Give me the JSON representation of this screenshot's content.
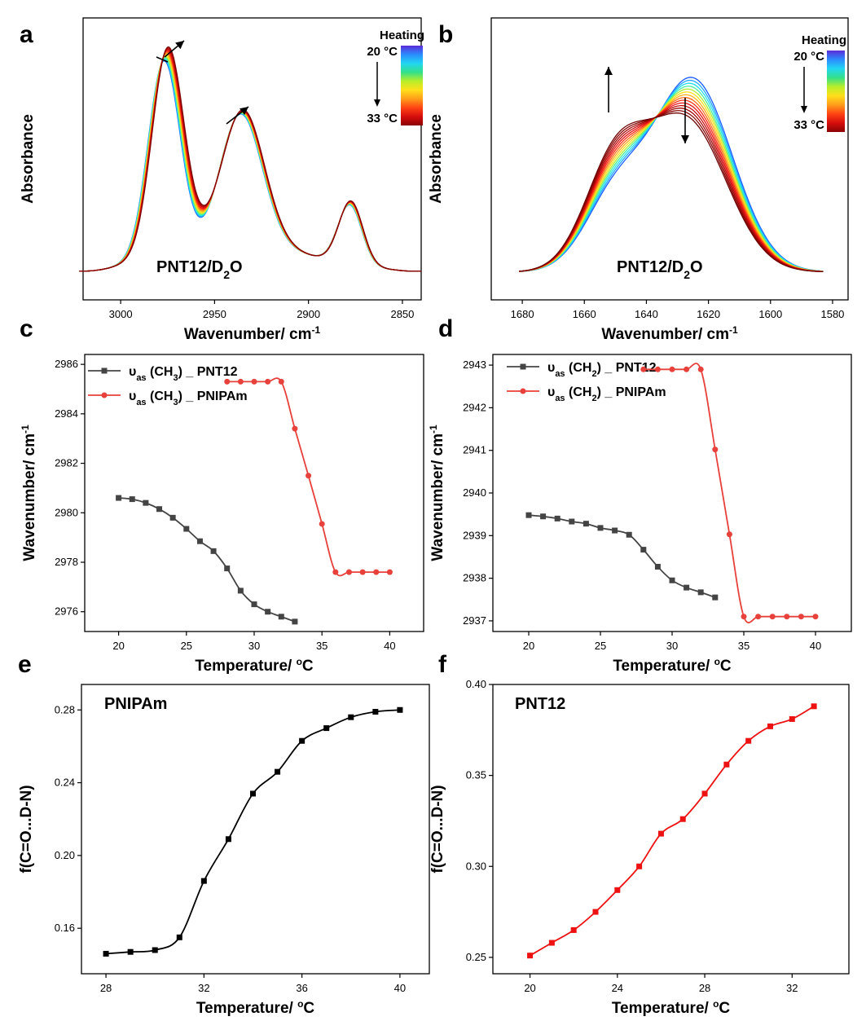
{
  "chart_data": [
    {
      "panel": "a",
      "type": "line",
      "xlabel": "Wavenumber/ cm",
      "xlabel_sup": "-1",
      "ylabel": "Absorbance",
      "xlim": [
        3020,
        2840
      ],
      "xticks": [
        3000,
        2950,
        2900,
        2850
      ],
      "annotation": "PNT12/D",
      "annotation_sub": "2",
      "annotation_tail": "O",
      "legend": {
        "title": "Heating",
        "start": "20 °C",
        "end": "33 °C"
      },
      "series_count": 14,
      "peaks": [
        {
          "x": 2977,
          "y_first": 0.92,
          "y_last": 0.98,
          "width": 12
        },
        {
          "x": 2936,
          "y_first": 0.62,
          "y_last": 0.64,
          "width": 16
        },
        {
          "x": 2878,
          "y_first": 0.28,
          "y_last": 0.3,
          "width": 9
        }
      ],
      "colors": [
        "#1a66ff",
        "#1fb8ff",
        "#22e6e6",
        "#4df099",
        "#99f04d",
        "#e6f026",
        "#ffd11a",
        "#ffa31a",
        "#ff6e1a",
        "#ff3314",
        "#ee1111",
        "#cc0a0a",
        "#a60606",
        "#800404"
      ]
    },
    {
      "panel": "b",
      "type": "line",
      "xlabel": "Wavenumber/ cm",
      "xlabel_sup": "-1",
      "ylabel": "Absorbance",
      "xlim": [
        1690,
        1575
      ],
      "xticks": [
        1680,
        1660,
        1640,
        1620,
        1600,
        1580
      ],
      "annotation": "PNT12/D",
      "annotation_sub": "2",
      "annotation_tail": "O",
      "legend": {
        "title": "Heating",
        "start": "20 °C",
        "end": "33 °C"
      },
      "series_count": 14,
      "peak_main": {
        "x": 1625,
        "y_first": 1.0,
        "y_last": 0.78
      },
      "peak_shoulder": {
        "x": 1650,
        "y_first": 0.5,
        "y_last": 0.74
      }
    },
    {
      "panel": "c",
      "type": "line",
      "xlabel": "Temperature/ ",
      "xlabel_unit": "C",
      "ylabel": "Wavenumber/ cm",
      "ylabel_sup": "-1",
      "xlim": [
        17.5,
        42.5
      ],
      "ylim": [
        2975.2,
        2986.4
      ],
      "xticks": [
        20,
        25,
        30,
        35,
        40
      ],
      "yticks": [
        2976,
        2978,
        2980,
        2982,
        2984,
        2986
      ],
      "series": [
        {
          "name_pre": "υ",
          "name_sub": "as",
          "name_mid": " (CH",
          "name_sub2": "3",
          "name_post": ") _ PNT12",
          "color": "#444444",
          "marker": "square",
          "x": [
            20,
            21,
            22,
            23,
            24,
            25,
            26,
            27,
            28,
            29,
            30,
            31,
            32,
            33
          ],
          "y": [
            2980.6,
            2980.55,
            2980.4,
            2980.15,
            2979.8,
            2979.35,
            2978.85,
            2978.45,
            2977.75,
            2976.85,
            2976.3,
            2976.0,
            2975.8,
            2975.6
          ]
        },
        {
          "name_pre": "υ",
          "name_sub": "as",
          "name_mid": " (CH",
          "name_sub2": "3",
          "name_post": ") _ PNIPAm",
          "color": "#e8403a",
          "marker": "circle",
          "x": [
            28,
            29,
            30,
            31,
            32,
            33,
            34,
            35,
            36,
            37,
            38,
            39,
            40
          ],
          "y": [
            2985.3,
            2985.3,
            2985.3,
            2985.3,
            2985.3,
            2983.4,
            2981.5,
            2979.55,
            2977.6,
            2977.6,
            2977.6,
            2977.6,
            2977.6
          ]
        }
      ]
    },
    {
      "panel": "d",
      "type": "line",
      "xlabel": "Temperature/ ",
      "xlabel_unit": "C",
      "ylabel": "Wavenumber/ cm",
      "ylabel_sup": "-1",
      "xlim": [
        17.5,
        42.5
      ],
      "ylim": [
        2936.75,
        2943.25
      ],
      "xticks": [
        20,
        25,
        30,
        35,
        40
      ],
      "yticks": [
        2937,
        2938,
        2939,
        2940,
        2941,
        2942,
        2943
      ],
      "series": [
        {
          "name_pre": "υ",
          "name_sub": "as",
          "name_mid": " (CH",
          "name_sub2": "2",
          "name_post": ") _ PNT12",
          "color": "#444444",
          "marker": "square",
          "x": [
            20,
            21,
            22,
            23,
            24,
            25,
            26,
            27,
            28,
            29,
            30,
            31,
            32,
            33
          ],
          "y": [
            2939.48,
            2939.45,
            2939.4,
            2939.33,
            2939.28,
            2939.18,
            2939.12,
            2939.02,
            2938.67,
            2938.27,
            2937.95,
            2937.78,
            2937.67,
            2937.55
          ]
        },
        {
          "name_pre": "υ",
          "name_sub": "as",
          "name_mid": " (CH",
          "name_sub2": "2",
          "name_post": ") _ PNIPAm",
          "color": "#e8403a",
          "marker": "circle",
          "x": [
            28,
            29,
            30,
            31,
            32,
            33,
            34,
            35,
            36,
            37,
            38,
            39,
            40
          ],
          "y": [
            2942.9,
            2942.9,
            2942.9,
            2942.9,
            2942.9,
            2941.02,
            2939.03,
            2937.1,
            2937.1,
            2937.1,
            2937.1,
            2937.1,
            2937.1
          ]
        }
      ]
    },
    {
      "panel": "e",
      "type": "line",
      "title": "PNIPAm",
      "xlabel": "Temperature/ ",
      "xlabel_unit": "C",
      "ylabel": "f(C=O...D-N)",
      "xlim": [
        27,
        41.2
      ],
      "ylim": [
        0.135,
        0.294
      ],
      "xticks": [
        28,
        32,
        36,
        40
      ],
      "yticks": [
        0.16,
        0.2,
        0.24,
        0.28
      ],
      "ytick_labels": [
        "0.16",
        "0.20",
        "0.24",
        "0.28"
      ],
      "series": [
        {
          "color": "#000000",
          "marker": "square",
          "x": [
            28,
            29,
            30,
            31,
            32,
            33,
            34,
            35,
            36,
            37,
            38,
            39,
            40
          ],
          "y": [
            0.146,
            0.147,
            0.148,
            0.155,
            0.186,
            0.209,
            0.234,
            0.246,
            0.263,
            0.27,
            0.276,
            0.279,
            0.28
          ]
        }
      ]
    },
    {
      "panel": "f",
      "type": "line",
      "title": "PNT12",
      "xlabel": "Temperature/ ",
      "xlabel_unit": "C",
      "ylabel": "f(C=O...D-N)",
      "xlim": [
        18.3,
        34.6
      ],
      "ylim": [
        0.241,
        0.4
      ],
      "xticks": [
        20,
        24,
        28,
        32
      ],
      "yticks": [
        0.25,
        0.3,
        0.35,
        0.4
      ],
      "ytick_labels": [
        "0.25",
        "0.30",
        "0.35",
        "0.40"
      ],
      "series": [
        {
          "color": "#ee1111",
          "marker": "square",
          "x": [
            20,
            21,
            22,
            23,
            24,
            25,
            26,
            27,
            28,
            29,
            30,
            31,
            32,
            33
          ],
          "y": [
            0.251,
            0.258,
            0.265,
            0.275,
            0.287,
            0.3,
            0.318,
            0.326,
            0.34,
            0.356,
            0.369,
            0.377,
            0.381,
            0.388
          ]
        }
      ]
    }
  ]
}
